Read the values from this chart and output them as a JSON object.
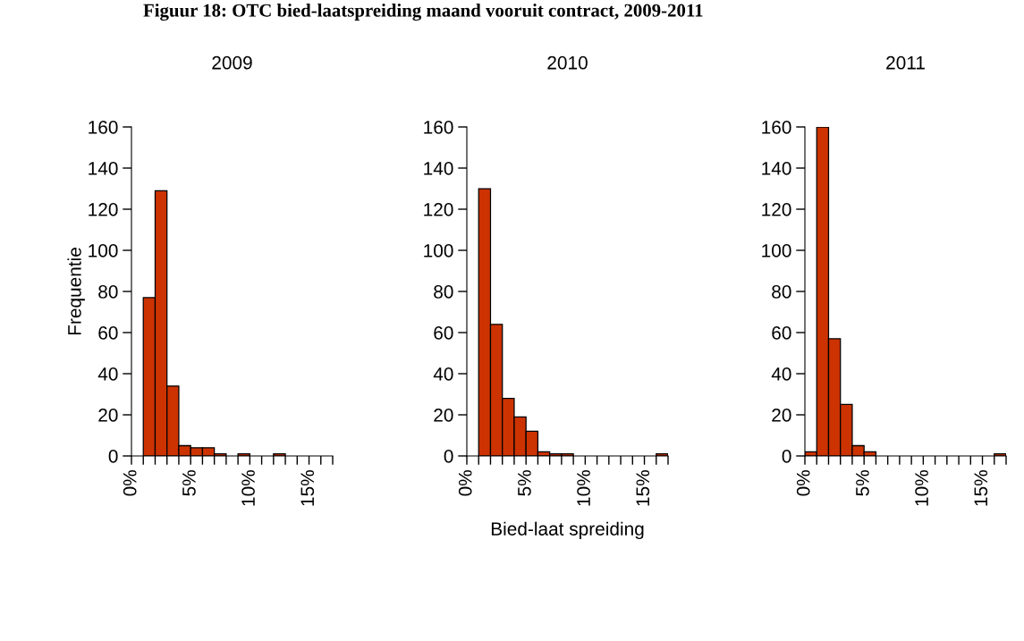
{
  "chart_data": [
    {
      "type": "histogram",
      "title": "2009",
      "ylabel": "Frequentie",
      "annotations": [
        "Figuur 18: OTC bied-laatspreiding maand vooruit contract, 2009-2011"
      ],
      "bins": [
        0,
        1,
        2,
        3,
        4,
        5,
        6,
        7,
        8,
        9,
        10,
        11,
        12,
        13,
        14,
        15,
        16,
        17
      ],
      "values": [
        0,
        77,
        129,
        34,
        5,
        4,
        4,
        1,
        0,
        1,
        0,
        0,
        1,
        0,
        0,
        0,
        0
      ],
      "color": "#cc3300",
      "xlim": [
        0,
        17
      ],
      "xticks": [
        {
          "value": 0,
          "label": "0%"
        },
        {
          "value": 1,
          "label": null
        },
        {
          "value": 2,
          "label": null
        },
        {
          "value": 3,
          "label": null
        },
        {
          "value": 4,
          "label": null
        },
        {
          "value": 5,
          "label": "5%"
        },
        {
          "value": 6,
          "label": null
        },
        {
          "value": 7,
          "label": null
        },
        {
          "value": 8,
          "label": null
        },
        {
          "value": 9,
          "label": null
        },
        {
          "value": 10,
          "label": "10%"
        },
        {
          "value": 11,
          "label": null
        },
        {
          "value": 12,
          "label": null
        },
        {
          "value": 13,
          "label": null
        },
        {
          "value": 14,
          "label": null
        },
        {
          "value": 15,
          "label": "15%"
        },
        {
          "value": 16,
          "label": null
        },
        {
          "value": 17,
          "label": null
        }
      ],
      "ylim": [
        0,
        160
      ],
      "yticks": [
        0,
        20,
        40,
        60,
        80,
        100,
        120,
        140,
        160
      ],
      "grid": false,
      "legend": false
    },
    {
      "type": "histogram",
      "title": "2010",
      "xlabel": "Bied-laat spreiding",
      "bins": [
        0,
        1,
        2,
        3,
        4,
        5,
        6,
        7,
        8,
        9,
        10,
        11,
        12,
        13,
        14,
        15,
        16,
        17
      ],
      "values": [
        0,
        130,
        64,
        28,
        19,
        12,
        2,
        1,
        1,
        0,
        0,
        0,
        0,
        0,
        0,
        0,
        1
      ],
      "color": "#cc3300",
      "xlim": [
        0,
        17
      ],
      "xticks": [
        {
          "value": 0,
          "label": "0%"
        },
        {
          "value": 1,
          "label": null
        },
        {
          "value": 2,
          "label": null
        },
        {
          "value": 3,
          "label": null
        },
        {
          "value": 4,
          "label": null
        },
        {
          "value": 5,
          "label": "5%"
        },
        {
          "value": 6,
          "label": null
        },
        {
          "value": 7,
          "label": null
        },
        {
          "value": 8,
          "label": null
        },
        {
          "value": 9,
          "label": null
        },
        {
          "value": 10,
          "label": "10%"
        },
        {
          "value": 11,
          "label": null
        },
        {
          "value": 12,
          "label": null
        },
        {
          "value": 13,
          "label": null
        },
        {
          "value": 14,
          "label": null
        },
        {
          "value": 15,
          "label": "15%"
        },
        {
          "value": 16,
          "label": null
        },
        {
          "value": 17,
          "label": null
        }
      ],
      "ylim": [
        0,
        160
      ],
      "yticks": [
        0,
        20,
        40,
        60,
        80,
        100,
        120,
        140,
        160
      ],
      "grid": false,
      "legend": false
    },
    {
      "type": "histogram",
      "title": "2011",
      "bins": [
        0,
        1,
        2,
        3,
        4,
        5,
        6,
        7,
        8,
        9,
        10,
        11,
        12,
        13,
        14,
        15,
        16,
        17
      ],
      "values": [
        2,
        160,
        57,
        25,
        5,
        2,
        0,
        0,
        0,
        0,
        0,
        0,
        0,
        0,
        0,
        0,
        1
      ],
      "color": "#cc3300",
      "xlim": [
        0,
        17
      ],
      "xticks": [
        {
          "value": 0,
          "label": "0%"
        },
        {
          "value": 1,
          "label": null
        },
        {
          "value": 2,
          "label": null
        },
        {
          "value": 3,
          "label": null
        },
        {
          "value": 4,
          "label": null
        },
        {
          "value": 5,
          "label": "5%"
        },
        {
          "value": 6,
          "label": null
        },
        {
          "value": 7,
          "label": null
        },
        {
          "value": 8,
          "label": null
        },
        {
          "value": 9,
          "label": null
        },
        {
          "value": 10,
          "label": "10%"
        },
        {
          "value": 11,
          "label": null
        },
        {
          "value": 12,
          "label": null
        },
        {
          "value": 13,
          "label": null
        },
        {
          "value": 14,
          "label": null
        },
        {
          "value": 15,
          "label": "15%"
        },
        {
          "value": 16,
          "label": null
        },
        {
          "value": 17,
          "label": null
        }
      ],
      "ylim": [
        0,
        160
      ],
      "yticks": [
        0,
        20,
        40,
        60,
        80,
        100,
        120,
        140,
        160
      ],
      "grid": false,
      "legend": false
    }
  ]
}
